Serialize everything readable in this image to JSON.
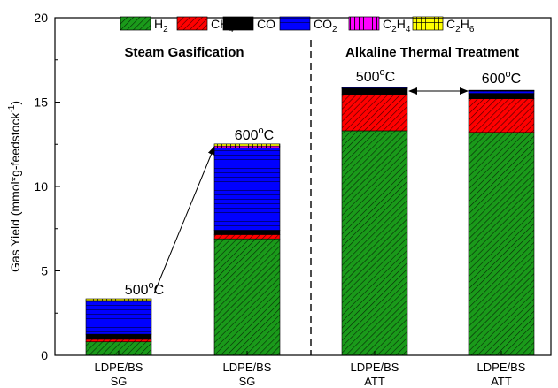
{
  "chart_data": {
    "type": "bar",
    "stacked": true,
    "categories": [
      {
        "line1": "LDPE/BS",
        "line2": "SG"
      },
      {
        "line1": "LDPE/BS",
        "line2": "SG"
      },
      {
        "line1": "LDPE/BS",
        "line2": "ATT"
      },
      {
        "line1": "LDPE/BS",
        "line2": "ATT"
      }
    ],
    "series": [
      {
        "name": "H2",
        "label_main": "H",
        "label_sub": "2",
        "color": "#1a9a1a",
        "pattern": "diagonal",
        "values": [
          0.8,
          6.9,
          13.3,
          13.2
        ]
      },
      {
        "name": "CH4",
        "label_main": "CH",
        "label_sub": "4",
        "color": "#ff0000",
        "pattern": "diagonal",
        "values": [
          0.15,
          0.25,
          2.15,
          2.0
        ]
      },
      {
        "name": "CO",
        "label_main": "CO",
        "label_sub": "",
        "color": "#000000",
        "pattern": "none",
        "values": [
          0.3,
          0.25,
          0.35,
          0.3
        ]
      },
      {
        "name": "CO2",
        "label_main": "CO",
        "label_sub": "2",
        "color": "#0000ff",
        "pattern": "horizontal",
        "values": [
          1.95,
          4.9,
          0.05,
          0.15
        ]
      },
      {
        "name": "C2H4",
        "label_main": "C",
        "label_sub": "2",
        "label_main2": "H",
        "label_sub2": "4",
        "color": "#ff00ff",
        "pattern": "vertical",
        "values": [
          0.05,
          0.1,
          0.02,
          0.02
        ]
      },
      {
        "name": "C2H6",
        "label_main": "C",
        "label_sub": "2",
        "label_main2": "H",
        "label_sub2": "6",
        "color": "#ffff00",
        "pattern": "grid",
        "values": [
          0.1,
          0.12,
          0.03,
          0.03
        ]
      }
    ],
    "ylabel": "Gas Yield (mmol*g-feedstock",
    "ylabel_sup": "-1",
    "ylabel_close": ")",
    "ylim": [
      0,
      20
    ],
    "yticks": [
      "0",
      "5",
      "10",
      "15",
      "20"
    ],
    "section_titles": [
      "Steam Gasification",
      "Alkaline Thermal Treatment"
    ],
    "temperature_labels": [
      {
        "value": "500",
        "unit": "C"
      },
      {
        "value": "600",
        "unit": "C"
      },
      {
        "value": "500",
        "unit": "C"
      },
      {
        "value": "600",
        "unit": "C"
      }
    ],
    "degree_symbol": "o",
    "legend_position": "top"
  }
}
